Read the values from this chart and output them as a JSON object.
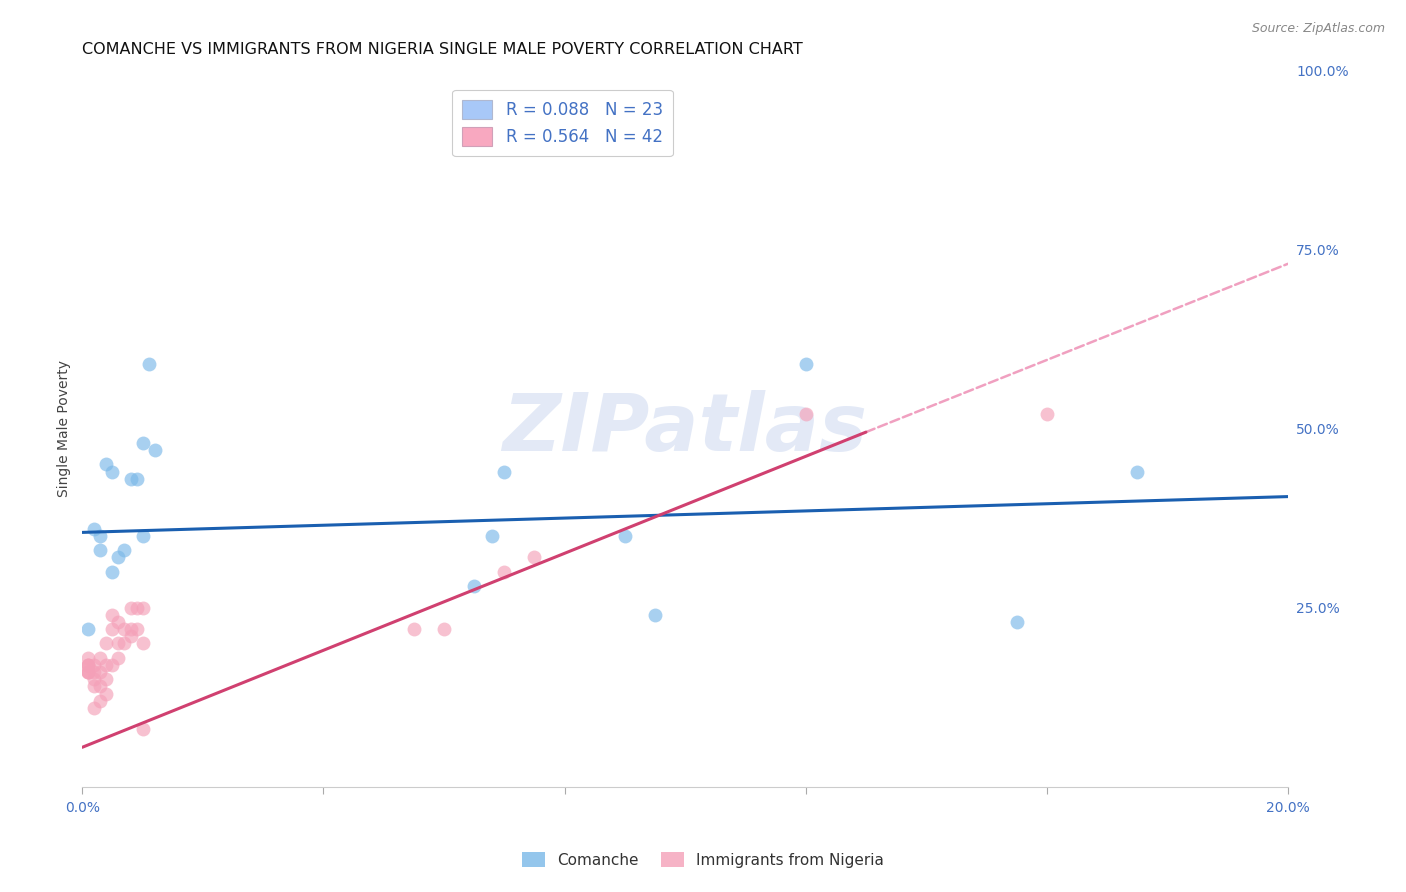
{
  "title": "COMANCHE VS IMMIGRANTS FROM NIGERIA SINGLE MALE POVERTY CORRELATION CHART",
  "source": "Source: ZipAtlas.com",
  "ylabel": "Single Male Poverty",
  "xmin": 0.0,
  "xmax": 0.2,
  "ymin": 0.0,
  "ymax": 1.0,
  "xtick_positions": [
    0.0,
    0.04,
    0.08,
    0.12,
    0.16,
    0.2
  ],
  "xticklabels": [
    "0.0%",
    "",
    "",
    "",
    "",
    "20.0%"
  ],
  "yticks_right": [
    0.0,
    0.25,
    0.5,
    0.75,
    1.0
  ],
  "ytick_labels_right": [
    "",
    "25.0%",
    "50.0%",
    "75.0%",
    "100.0%"
  ],
  "legend_labels": [
    "R = 0.088   N = 23",
    "R = 0.564   N = 42"
  ],
  "legend_patch_colors": [
    "#a8c8f8",
    "#f8a8c0"
  ],
  "series1_label": "Comanche",
  "series2_label": "Immigrants from Nigeria",
  "series1_color": "#7ab8e8",
  "series2_color": "#f4a0b8",
  "trendline1_color": "#1a5fb0",
  "trendline2_color": "#d04070",
  "trendline2_dashed_color": "#f0a0c0",
  "watermark_text": "ZIPatlas",
  "blue_dots_x": [
    0.001,
    0.002,
    0.003,
    0.003,
    0.004,
    0.005,
    0.005,
    0.006,
    0.007,
    0.008,
    0.009,
    0.01,
    0.01,
    0.011,
    0.012,
    0.065,
    0.068,
    0.07,
    0.09,
    0.095,
    0.12,
    0.155,
    0.175
  ],
  "blue_dots_y": [
    0.22,
    0.36,
    0.35,
    0.33,
    0.45,
    0.44,
    0.3,
    0.32,
    0.33,
    0.43,
    0.43,
    0.35,
    0.48,
    0.59,
    0.47,
    0.28,
    0.35,
    0.44,
    0.35,
    0.24,
    0.59,
    0.23,
    0.44
  ],
  "pink_dots_x": [
    0.001,
    0.001,
    0.001,
    0.001,
    0.001,
    0.001,
    0.001,
    0.002,
    0.002,
    0.002,
    0.002,
    0.002,
    0.003,
    0.003,
    0.003,
    0.003,
    0.004,
    0.004,
    0.004,
    0.004,
    0.005,
    0.005,
    0.005,
    0.006,
    0.006,
    0.006,
    0.007,
    0.007,
    0.008,
    0.008,
    0.008,
    0.009,
    0.009,
    0.01,
    0.01,
    0.01,
    0.055,
    0.06,
    0.07,
    0.075,
    0.12,
    0.16
  ],
  "pink_dots_y": [
    0.16,
    0.16,
    0.16,
    0.17,
    0.17,
    0.17,
    0.18,
    0.11,
    0.14,
    0.15,
    0.16,
    0.17,
    0.12,
    0.14,
    0.16,
    0.18,
    0.13,
    0.15,
    0.17,
    0.2,
    0.17,
    0.22,
    0.24,
    0.18,
    0.2,
    0.23,
    0.2,
    0.22,
    0.21,
    0.22,
    0.25,
    0.22,
    0.25,
    0.08,
    0.2,
    0.25,
    0.22,
    0.22,
    0.3,
    0.32,
    0.52,
    0.52
  ],
  "trendline1_x0": 0.0,
  "trendline1_y0": 0.355,
  "trendline1_x1": 0.2,
  "trendline1_y1": 0.405,
  "trendline2_x0": 0.0,
  "trendline2_y0": 0.055,
  "trendline2_x1_solid": 0.13,
  "trendline2_y1_solid": 0.495,
  "trendline2_x1_dashed": 0.2,
  "trendline2_y1_dashed": 0.73,
  "grid_color": "#c8d4e8",
  "background_color": "#ffffff",
  "title_fontsize": 11.5,
  "axis_label_fontsize": 10,
  "tick_fontsize": 10,
  "dot_size": 100,
  "dot_alpha": 0.65,
  "legend_fontsize": 12,
  "right_tick_color": "#4472c4"
}
